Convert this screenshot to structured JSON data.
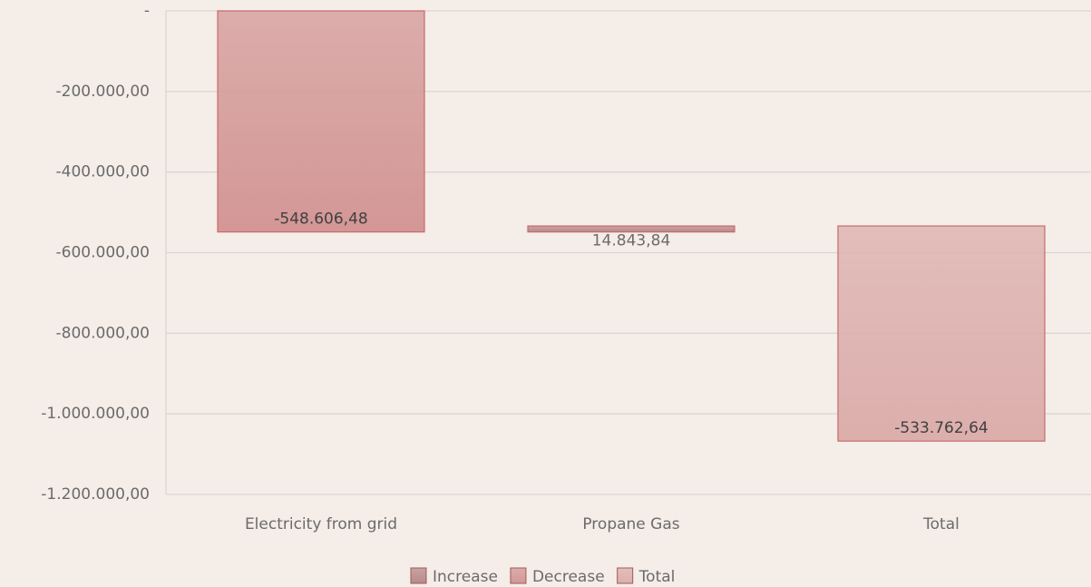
{
  "chart_data": {
    "type": "waterfall",
    "categories": [
      "Electricity from grid",
      "Propane Gas",
      "Total"
    ],
    "series": [
      {
        "name": "Increase",
        "color": "#b88a8b",
        "values": [
          null,
          14843.84,
          null
        ],
        "value_labels": [
          null,
          "14.843,84",
          null
        ]
      },
      {
        "name": "Decrease",
        "color": "#d39796",
        "values": [
          -548606.48,
          null,
          null
        ],
        "value_labels": [
          "-548.606,48",
          null,
          null
        ]
      },
      {
        "name": "Total",
        "color": "#dcaeac",
        "values": [
          null,
          null,
          -533762.64
        ],
        "value_labels": [
          null,
          null,
          "-533.762,64"
        ]
      }
    ],
    "ylim": [
      -1200000,
      0
    ],
    "yticks": [
      {
        "value": 0,
        "label": "-"
      },
      {
        "value": -200000,
        "label": "-200.000,00"
      },
      {
        "value": -400000,
        "label": "-400.000,00"
      },
      {
        "value": -600000,
        "label": "-600.000,00"
      },
      {
        "value": -800000,
        "label": "-800.000,00"
      },
      {
        "value": -1000000,
        "label": "-1.000.000,00"
      },
      {
        "value": -1200000,
        "label": "-1.200.000,00"
      }
    ],
    "grid": true,
    "legend": "bottom"
  }
}
